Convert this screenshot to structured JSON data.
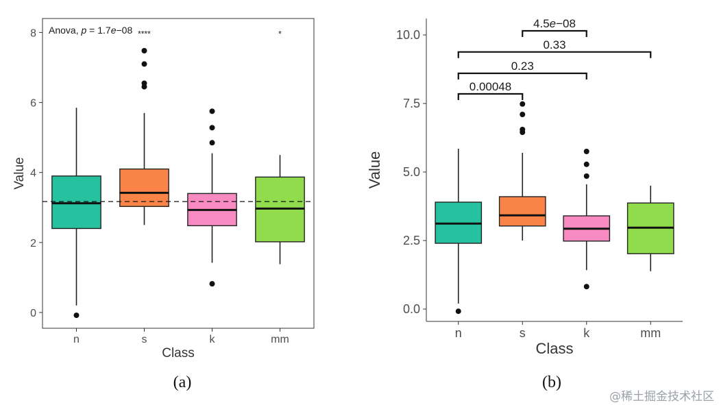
{
  "chart_data": [
    {
      "panel": "(a)",
      "type": "box",
      "xlabel": "Class",
      "ylabel": "Value",
      "categories": [
        "n",
        "s",
        "k",
        "mm"
      ],
      "ylim": [
        -0.45,
        8.4
      ],
      "yticks": [
        0,
        2,
        4,
        6,
        8
      ],
      "ytick_labels": [
        "0",
        "2",
        "4",
        "6",
        "8"
      ],
      "grid": false,
      "reference_line": {
        "value": 3.17,
        "style": "dashed"
      },
      "annotation": {
        "prefix": "Anova, ",
        "p_symbol": "p",
        "mid": " = 1.7",
        "exp_e": "e",
        "suffix": "−08"
      },
      "significance_labels": [
        {
          "category": "s",
          "label": "****",
          "y": 8.0
        },
        {
          "category": "mm",
          "label": "*",
          "y": 8.0
        }
      ],
      "boxes": [
        {
          "category": "n",
          "color": "#26c2a0",
          "min": 0.2,
          "q1": 2.4,
          "median": 3.12,
          "q3": 3.9,
          "max": 5.85,
          "outliers": [
            -0.08
          ]
        },
        {
          "category": "s",
          "color": "#fa8448",
          "min": 2.5,
          "q1": 3.03,
          "median": 3.42,
          "q3": 4.1,
          "max": 5.7,
          "outliers": [
            6.45,
            6.55,
            7.1,
            7.48
          ]
        },
        {
          "category": "k",
          "color": "#f78ac0",
          "min": 1.42,
          "q1": 2.48,
          "median": 2.93,
          "q3": 3.4,
          "max": 4.55,
          "outliers": [
            0.82,
            4.85,
            5.28,
            5.75
          ]
        },
        {
          "category": "mm",
          "color": "#90dc4c",
          "min": 1.38,
          "q1": 2.02,
          "median": 2.97,
          "q3": 3.87,
          "max": 4.5,
          "outliers": []
        }
      ]
    },
    {
      "panel": "(b)",
      "type": "box",
      "xlabel": "Class",
      "ylabel": "Value",
      "categories": [
        "n",
        "s",
        "k",
        "mm"
      ],
      "ylim": [
        -0.45,
        10.6
      ],
      "yticks": [
        0.0,
        2.5,
        5.0,
        7.5,
        10.0
      ],
      "ytick_labels": [
        "0.0",
        "2.5",
        "5.0",
        "7.5",
        "10.0"
      ],
      "grid": false,
      "comparisons": [
        {
          "from": "n",
          "to": "s",
          "y": 7.85,
          "p_label": "0.00048"
        },
        {
          "from": "n",
          "to": "k",
          "y": 8.6,
          "p_label": "0.23"
        },
        {
          "from": "n",
          "to": "mm",
          "y": 9.38,
          "p_label": "0.33"
        },
        {
          "from": "s",
          "to": "k",
          "y": 10.15,
          "p_label": "4.5",
          "p_exp_e": "e",
          "p_exp": "−08"
        }
      ],
      "boxes": [
        {
          "category": "n",
          "color": "#26c2a0",
          "min": 0.2,
          "q1": 2.4,
          "median": 3.12,
          "q3": 3.9,
          "max": 5.85,
          "outliers": [
            -0.08
          ]
        },
        {
          "category": "s",
          "color": "#fa8448",
          "min": 2.5,
          "q1": 3.03,
          "median": 3.42,
          "q3": 4.1,
          "max": 5.7,
          "outliers": [
            6.45,
            6.55,
            7.1,
            7.48
          ]
        },
        {
          "category": "k",
          "color": "#f78ac0",
          "min": 1.42,
          "q1": 2.48,
          "median": 2.93,
          "q3": 3.4,
          "max": 4.55,
          "outliers": [
            0.82,
            4.85,
            5.28,
            5.75
          ]
        },
        {
          "category": "mm",
          "color": "#90dc4c",
          "min": 1.38,
          "q1": 2.02,
          "median": 2.97,
          "q3": 3.87,
          "max": 4.5,
          "outliers": []
        }
      ]
    }
  ],
  "captions": {
    "a": "(a)",
    "b": "(b)"
  },
  "watermark": "@稀土掘金技术社区"
}
